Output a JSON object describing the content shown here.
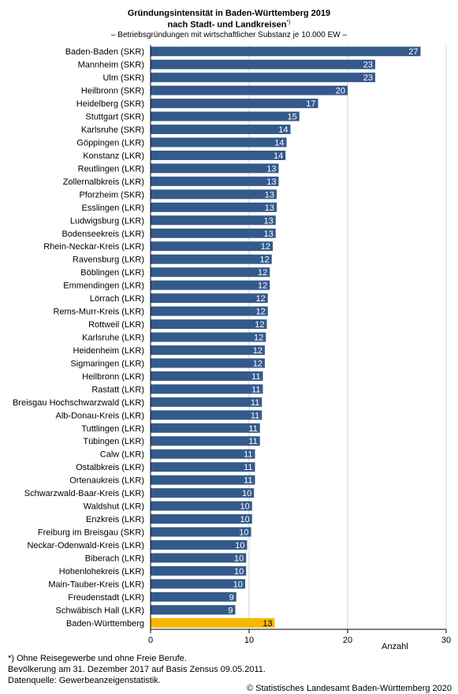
{
  "header": {
    "title_line1": "Gründungsintensität in Baden-Württemberg 2019",
    "title_line2": "nach Stadt- und Landkreisen",
    "title_footnote_mark": "*)",
    "subtitle": "– Betriebsgründungen mit wirtschaftlicher Substanz je 10.000 EW –"
  },
  "footnotes": {
    "line1": "*) Ohne Reisegewerbe und ohne Freie Berufe.",
    "line2": "Bevölkerung am 31. Dezember 2017 auf Basis Zensus 09.05.2011.",
    "line3": "Datenquelle: Gewerbeanzeigenstatistik."
  },
  "copyright": "© Statistisches Landesamt Baden-Württemberg 2020",
  "chart_data": {
    "type": "bar",
    "orientation": "horizontal",
    "title": "Gründungsintensität in Baden-Württemberg 2019 nach Stadt- und Landkreisen*)",
    "subtitle": "– Betriebsgründungen mit wirtschaftlicher Substanz je 10.000 EW –",
    "xlabel": "Anzahl",
    "ylabel": "",
    "xlim": [
      0,
      30
    ],
    "xticks": [
      0,
      10,
      20,
      30
    ],
    "grid": true,
    "bar_color": "#345a8c",
    "highlight_color": "#f5b800",
    "categories": [
      "Baden-Baden (SKR)",
      "Mannheim (SKR)",
      "Ulm (SKR)",
      "Heilbronn (SKR)",
      "Heidelberg (SKR)",
      "Stuttgart (SKR)",
      "Karlsruhe (SKR)",
      "Göppingen (LKR)",
      "Konstanz (LKR)",
      "Reutlingen (LKR)",
      "Zollernalbkreis (LKR)",
      "Pforzheim (SKR)",
      "Esslingen (LKR)",
      "Ludwigsburg (LKR)",
      "Bodenseekreis (LKR)",
      "Rhein-Neckar-Kreis (LKR)",
      "Ravensburg (LKR)",
      "Böblingen (LKR)",
      "Emmendingen (LKR)",
      "Lörrach (LKR)",
      "Rems-Murr-Kreis (LKR)",
      "Rottweil (LKR)",
      "Karlsruhe (LKR)",
      "Heidenheim (LKR)",
      "Sigmaringen (LKR)",
      "Heilbronn (LKR)",
      "Rastatt (LKR)",
      "Breisgau Hochschwarzwald (LKR)",
      "Alb-Donau-Kreis (LKR)",
      "Tuttlingen (LKR)",
      "Tübingen (LKR)",
      "Calw (LKR)",
      "Ostalbkreis (LKR)",
      "Ortenaukreis (LKR)",
      "Schwarzwald-Baar-Kreis (LKR)",
      "Waldshut (LKR)",
      "Enzkreis (LKR)",
      "Freiburg im Breisgau (SKR)",
      "Neckar-Odenwald-Kreis (LKR)",
      "Biberach (LKR)",
      "Hohenlohekreis (LKR)",
      "Main-Tauber-Kreis (LKR)",
      "Freudenstadt (LKR)",
      "Schwäbisch Hall (LKR)",
      "Baden-Württemberg"
    ],
    "values": [
      27.4,
      22.8,
      22.8,
      20.0,
      17.0,
      15.1,
      14.2,
      13.8,
      13.7,
      13.0,
      13.0,
      12.8,
      12.8,
      12.7,
      12.7,
      12.4,
      12.3,
      12.1,
      12.1,
      11.9,
      11.9,
      11.8,
      11.7,
      11.6,
      11.6,
      11.4,
      11.4,
      11.3,
      11.3,
      11.1,
      11.1,
      10.6,
      10.6,
      10.6,
      10.5,
      10.3,
      10.3,
      10.2,
      9.8,
      9.7,
      9.7,
      9.6,
      8.7,
      8.6,
      12.6
    ],
    "data_labels": [
      "27",
      "23",
      "23",
      "20",
      "17",
      "15",
      "14",
      "14",
      "14",
      "13",
      "13",
      "13",
      "13",
      "13",
      "13",
      "12",
      "12",
      "12",
      "12",
      "12",
      "12",
      "12",
      "12",
      "12",
      "12",
      "11",
      "11",
      "11",
      "11",
      "11",
      "11",
      "11",
      "11",
      "11",
      "10",
      "10",
      "10",
      "10",
      "10",
      "10",
      "10",
      "10",
      "9",
      "9",
      "13"
    ],
    "highlight_category": "Baden-Württemberg"
  }
}
